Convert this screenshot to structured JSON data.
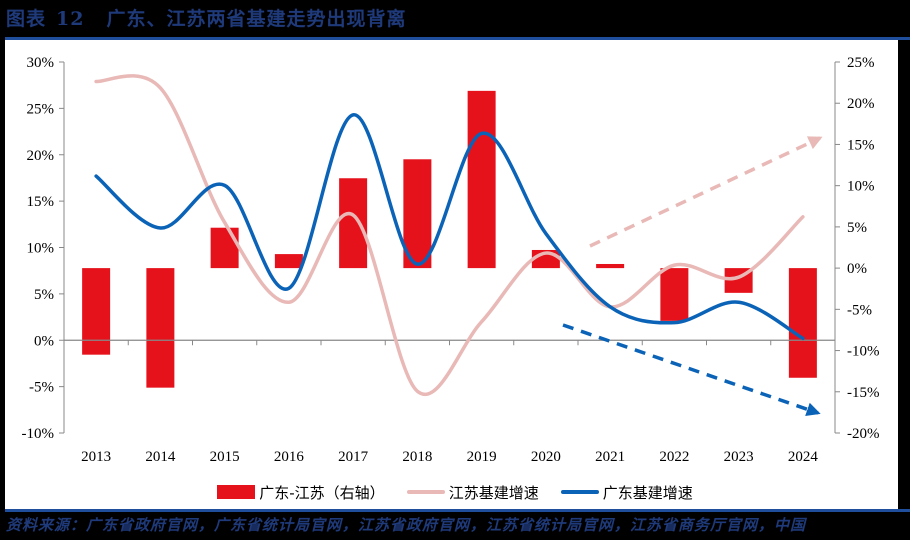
{
  "header": {
    "label": "图表",
    "number": "12",
    "title": "广东、江苏两省基建走势出现背离"
  },
  "source": "资料来源：广东省政府官网，广东省统计局官网，江苏省政府官网，江苏省统计局官网，江苏省商务厅官网，中国",
  "colors": {
    "bar": "#e5121c",
    "jiangsu_line": "#e8b9b6",
    "guangdong_line": "#0b63b8",
    "title": "#1f3a7a",
    "rule": "#1f4e9c"
  },
  "legend": [
    {
      "label": "广东-江苏（右轴）",
      "type": "bar",
      "color": "#e5121c"
    },
    {
      "label": "江苏基建增速",
      "type": "line",
      "color": "#e8b9b6"
    },
    {
      "label": "广东基建增速",
      "type": "line",
      "color": "#0b63b8"
    }
  ],
  "chart_data": {
    "type": "bar+line",
    "title": "广东、江苏两省基建走势出现背离",
    "categories": [
      "2013",
      "2014",
      "2015",
      "2016",
      "2017",
      "2018",
      "2019",
      "2020",
      "2021",
      "2022",
      "2023",
      "2024"
    ],
    "left_axis": {
      "ticks": [
        "30%",
        "25%",
        "20%",
        "15%",
        "10%",
        "5%",
        "0%",
        "-5%",
        "-10%"
      ],
      "ylim": [
        -10,
        30
      ]
    },
    "right_axis": {
      "ticks": [
        "25%",
        "20%",
        "15%",
        "10%",
        "5%",
        "0%",
        "-5%",
        "-10%",
        "-15%",
        "-20%"
      ],
      "ylim": [
        -20,
        25
      ]
    },
    "series": [
      {
        "name": "广东-江苏（右轴）",
        "type": "bar",
        "axis": "right",
        "values": [
          -10.5,
          -14.5,
          4.9,
          1.7,
          10.9,
          13.2,
          21.5,
          2.2,
          0.5,
          -6.4,
          -3.0,
          -13.3
        ]
      },
      {
        "name": "江苏基建增速",
        "type": "line",
        "axis": "left",
        "values": [
          27.9,
          27.2,
          12.7,
          4.1,
          13.5,
          -5.5,
          2.0,
          9.4,
          3.6,
          8.1,
          6.8,
          13.3
        ]
      },
      {
        "name": "广东基建增速",
        "type": "line",
        "axis": "left",
        "values": [
          17.7,
          12.1,
          16.7,
          5.6,
          24.3,
          8.2,
          22.3,
          11.5,
          3.6,
          1.9,
          4.1,
          0.2
        ]
      }
    ],
    "annotations": [
      {
        "type": "dashed-arrow",
        "color": "#e8b9b6",
        "from": [
          590,
          246
        ],
        "to": [
          820,
          138
        ],
        "meaning": "江苏 upward trend"
      },
      {
        "type": "dashed-arrow",
        "color": "#0b63b8",
        "from": [
          563,
          325
        ],
        "to": [
          818,
          413
        ],
        "meaning": "广东 downward trend"
      }
    ],
    "grid": false,
    "legend_position": "bottom"
  }
}
